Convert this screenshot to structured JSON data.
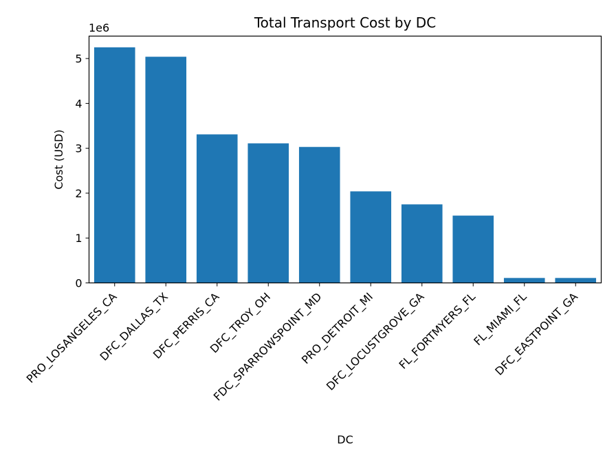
{
  "chart_data": {
    "type": "bar",
    "title": "Total Transport Cost by DC",
    "xlabel": "DC",
    "ylabel": "Cost (USD)",
    "y_offset_label": "1e6",
    "categories": [
      "PRO_LOSANGELES_CA",
      "DFC_DALLAS_TX",
      "DFC_PERRIS_CA",
      "DFC_TROY_OH",
      "FDC_SPARROWSPOINT_MD",
      "PRO_DETROIT_MI",
      "DFC_LOCUSTGROVE_GA",
      "FL_FORTMYERS_FL",
      "FL_MIAMI_FL",
      "DFC_EASTPOINT_GA"
    ],
    "values": [
      5250000,
      5040000,
      3310000,
      3110000,
      3030000,
      2040000,
      1750000,
      1500000,
      110000,
      110000
    ],
    "yticks": [
      0,
      1,
      2,
      3,
      4,
      5
    ],
    "y_unit_scale": 1000000,
    "ylim": [
      0,
      5500000
    ],
    "bar_color": "#1f77b4",
    "grid": false,
    "legend": "none"
  }
}
